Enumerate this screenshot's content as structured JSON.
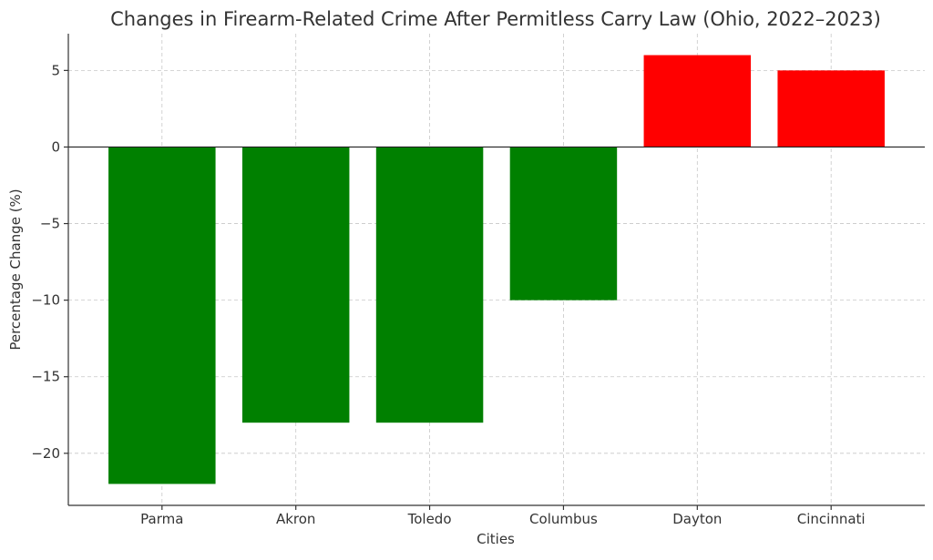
{
  "chart_data": {
    "type": "bar",
    "title": "Changes in Firearm-Related Crime After Permitless Carry Law (Ohio, 2022–2023)",
    "xlabel": "Cities",
    "ylabel": "Percentage Change (%)",
    "categories": [
      "Parma",
      "Akron",
      "Toledo",
      "Columbus",
      "Dayton",
      "Cincinnati"
    ],
    "values": [
      -22,
      -18,
      -18,
      -10,
      6,
      5
    ],
    "colors": [
      "#008000",
      "#008000",
      "#008000",
      "#008000",
      "#ff0000",
      "#ff0000"
    ],
    "ylim": [
      -23.4,
      7.4
    ],
    "yticks": [
      5,
      0,
      -5,
      -10,
      -15,
      -20
    ],
    "ytick_labels": [
      "5",
      "0",
      "−5",
      "−10",
      "−15",
      "−20"
    ],
    "grid": true,
    "zero_line": true
  }
}
